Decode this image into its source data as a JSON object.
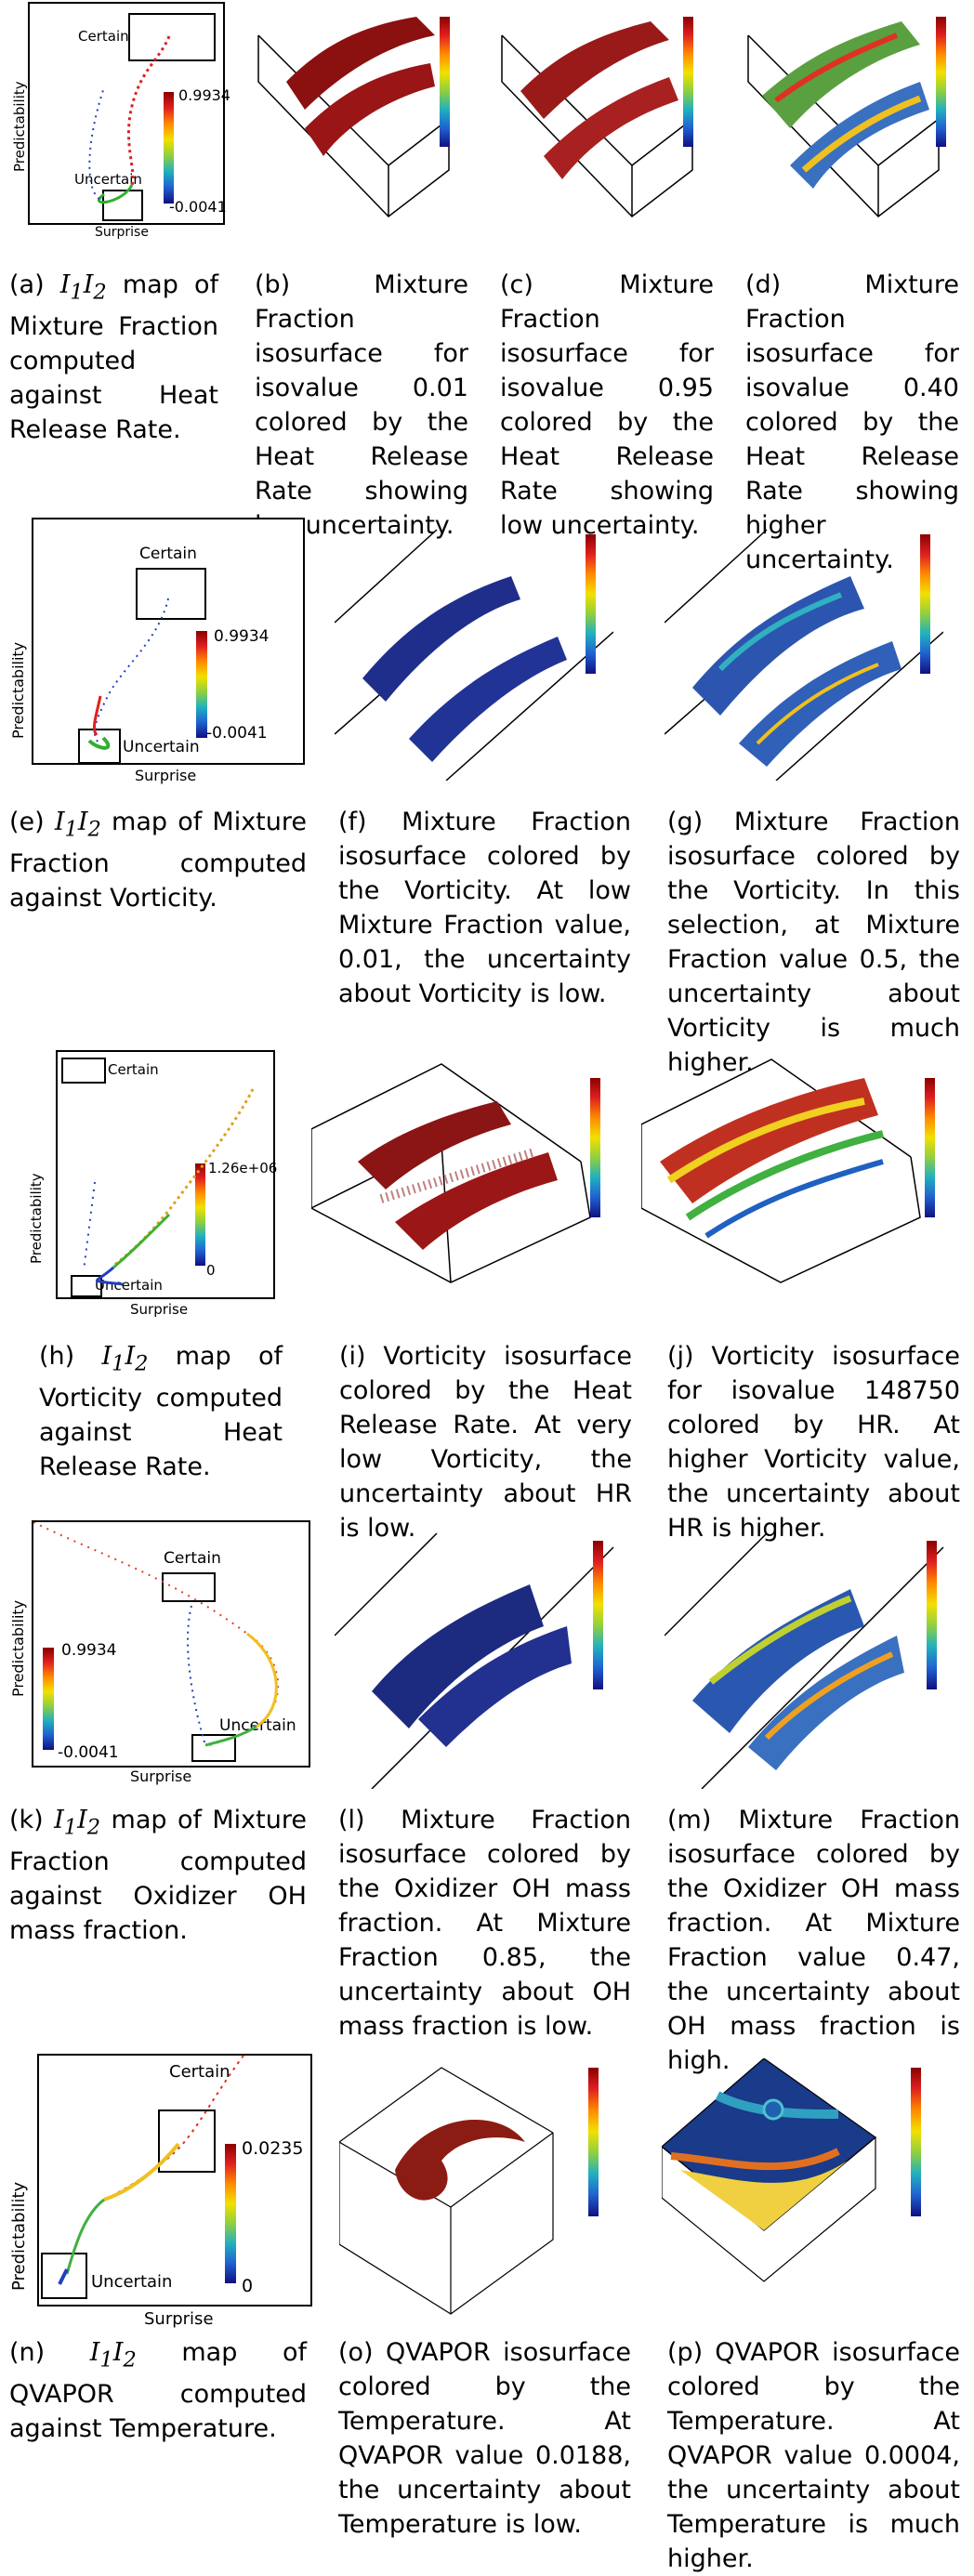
{
  "labels": {
    "certain": "Certain",
    "uncertain": "Uncertain",
    "surprise": "Surprise",
    "predictability": "Predictability"
  },
  "rows": [
    {
      "map": {
        "max": "0.9934",
        "min": "-0.0041"
      },
      "captions": [
        {
          "label": "(a)",
          "math": "I1I2",
          "text": " map of Mixture Fraction computed against Heat Release Rate."
        },
        {
          "label": "(b)",
          "text": "Mixture Fraction isosurface for isovalue 0.01 colored by the Heat Release Rate showing low uncertainty."
        },
        {
          "label": "(c)",
          "text": "Mixture Fraction isosurface for isovalue 0.95 colored by the Heat Release Rate showing low uncertainty."
        },
        {
          "label": "(d)",
          "text": "Mixture Fraction isosurface for isovalue 0.40 colored by the Heat Release Rate showing higher uncertainty."
        }
      ]
    },
    {
      "map": {
        "max": "0.9934",
        "min": "-0.0041"
      },
      "captions": [
        {
          "label": "(e)",
          "math": "I1I2",
          "text": " map of Mixture Fraction computed against Vorticity."
        },
        {
          "label": "(f)",
          "text": "Mixture Fraction isosurface colored by the Vorticity. At low Mixture Fraction value, 0.01, the uncertainty about Vorticity is low."
        },
        {
          "label": "(g)",
          "text": "Mixture Fraction isosurface colored by the Vorticity. In this selection, at Mixture Fraction value 0.5, the uncertainty about Vorticity is much higher."
        }
      ]
    },
    {
      "map": {
        "max": "1.26e+06",
        "min": "0"
      },
      "captions": [
        {
          "label": "(h)",
          "math": "I1I2",
          "text": " map of Vorticity computed against Heat Release Rate."
        },
        {
          "label": "(i)",
          "text": "Vorticity isosurface colored by the Heat Release Rate. At very low Vorticity, the uncertainty about HR is low."
        },
        {
          "label": "(j)",
          "text": "Vorticity isosurface for isovalue 148750 colored by HR. At higher Vorticity value, the uncertainty about HR is higher."
        }
      ]
    },
    {
      "map": {
        "max": "0.9934",
        "min": "-0.0041"
      },
      "captions": [
        {
          "label": "(k)",
          "math": "I1I2",
          "text": " map of Mixture Fraction computed against Oxidizer OH mass fraction."
        },
        {
          "label": "(l)",
          "text": "Mixture Fraction isosurface colored by the Oxidizer OH mass fraction. At Mixture Fraction 0.85, the uncertainty about OH mass fraction is low."
        },
        {
          "label": "(m)",
          "text": "Mixture Fraction isosurface colored by the Oxidizer OH mass fraction. At Mixture Fraction value 0.47, the uncertainty about OH mass fraction is high."
        }
      ]
    },
    {
      "map": {
        "max": "0.0235",
        "min": "0"
      },
      "captions": [
        {
          "label": "(n)",
          "math": "I1I2",
          "text": " map of QVAPOR computed against Temperature."
        },
        {
          "label": "(o)",
          "text": "QVAPOR isosurface colored by the Temperature. At QVAPOR value 0.0188, the uncertainty about Temperature is low."
        },
        {
          "label": "(p)",
          "text": "QVAPOR isosurface colored by the Temperature. At QVAPOR value 0.0004, the uncertainty about Temperature is much higher."
        }
      ]
    }
  ]
}
